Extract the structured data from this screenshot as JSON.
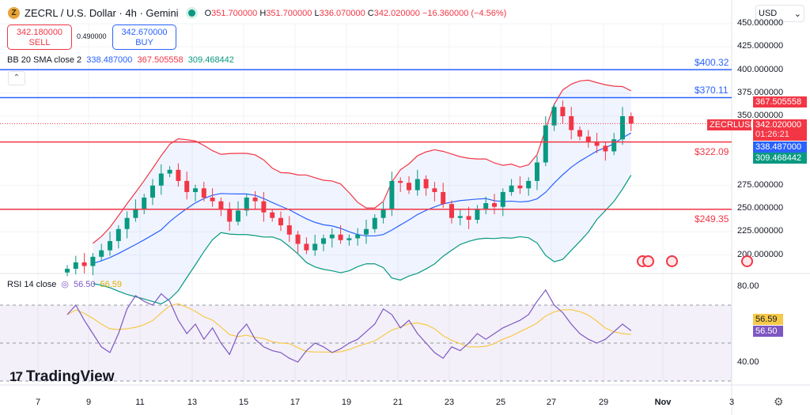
{
  "header": {
    "symbol": "ZECRL / U.S. Dollar · 4h · Gemini",
    "o_label": "O",
    "o": "351.700000",
    "h_label": "H",
    "h": "351.700000",
    "l_label": "L",
    "l": "336.070000",
    "c_label": "C",
    "c": "342.020000",
    "change": "−16.360000 (−4.56%)"
  },
  "trade": {
    "sell_price": "342.180000",
    "sell_label": "SELL",
    "spread": "0.490000",
    "buy_price": "342.670000",
    "buy_label": "BUY"
  },
  "bb": {
    "label": "BB 20 SMA close 2",
    "basis": "338.487000",
    "upper": "367.505558",
    "lower": "309.468442"
  },
  "currency": "USD",
  "price_axis": [
    "450.000000",
    "425.000000",
    "400.000000",
    "375.000000",
    "350.000000",
    "275.000000",
    "250.000000",
    "225.000000",
    "200.000000"
  ],
  "price_ticks": [
    450,
    425,
    400,
    375,
    350,
    275,
    250,
    225,
    200
  ],
  "tags": {
    "upper": "367.505558",
    "symbol": "ZECRLUSD",
    "last": "342.020000",
    "countdown": "01:26:21",
    "basis": "338.487000",
    "lower": "309.468442"
  },
  "levels": [
    {
      "label": "$400.32",
      "value": 400.32,
      "color": "#2962ff"
    },
    {
      "label": "$370.11",
      "value": 370.11,
      "color": "#2962ff"
    },
    {
      "label": "$322.09",
      "value": 322.09,
      "color": "#f23645"
    },
    {
      "label": "$249.35",
      "value": 249.35,
      "color": "#f23645"
    }
  ],
  "rsi": {
    "label": "RSI 14 close",
    "value": "56.50",
    "ma": "56.59",
    "axis": [
      "80.00",
      "40.00"
    ]
  },
  "time_axis": [
    "7",
    "9",
    "11",
    "13",
    "15",
    "17",
    "19",
    "21",
    "23",
    "25",
    "27",
    "29",
    "Nov",
    "3"
  ],
  "logo": "TradingView",
  "colors": {
    "up": "#089981",
    "down": "#f23645",
    "basis": "#2962ff",
    "upper": "#f23645",
    "lower": "#089981",
    "rsi": "#7e57c2",
    "rsi_ma": "#f7c948"
  },
  "closes": [
    185,
    192,
    188,
    198,
    205,
    215,
    228,
    240,
    250,
    262,
    275,
    288,
    292,
    280,
    268,
    272,
    262,
    258,
    250,
    236,
    248,
    262,
    258,
    246,
    240,
    232,
    222,
    212,
    205,
    212,
    218,
    222,
    216,
    218,
    222,
    228,
    240,
    250,
    280,
    278,
    270,
    282,
    272,
    268,
    255,
    240,
    242,
    238,
    250,
    256,
    252,
    268,
    275,
    272,
    280,
    300,
    340,
    360,
    350,
    335,
    328,
    322,
    318,
    312,
    325,
    350,
    342
  ],
  "rsi_values": [
    65,
    70,
    62,
    55,
    48,
    45,
    55,
    68,
    75,
    72,
    70,
    76,
    72,
    62,
    55,
    60,
    52,
    58,
    50,
    44,
    55,
    60,
    52,
    48,
    46,
    45,
    42,
    40,
    46,
    50,
    48,
    45,
    47,
    50,
    52,
    56,
    60,
    68,
    65,
    58,
    62,
    55,
    50,
    45,
    42,
    48,
    46,
    50,
    55,
    52,
    55,
    58,
    60,
    62,
    65,
    72,
    78,
    70,
    66,
    60,
    55,
    52,
    50,
    52,
    56,
    60,
    56.5
  ]
}
